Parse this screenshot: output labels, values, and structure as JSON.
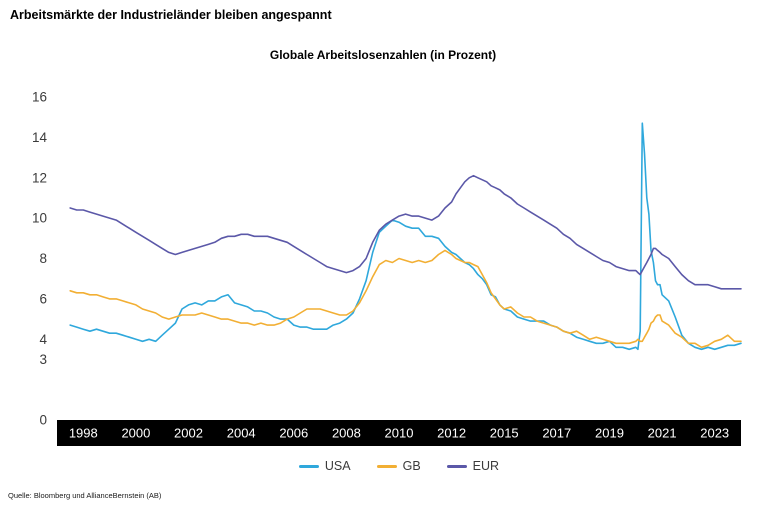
{
  "headline": "Arbeitsmärkte der Industrieländer bleiben angespannt",
  "source": "Quelle: Bloomberg und AllianceBernstein (AB)",
  "chart_data": {
    "type": "line",
    "title": "Globale Arbeitslosenzahlen (in Prozent)",
    "ylabel": "",
    "xlabel": "",
    "ylim": [
      0,
      16
    ],
    "grid": false,
    "legend_position": "bottom",
    "y_ticks": [
      16,
      14,
      12,
      10,
      8,
      6,
      4,
      3,
      0
    ],
    "x_tick_labels": [
      "1998",
      "2000",
      "2002",
      "2004",
      "2006",
      "2008",
      "2010",
      "2012",
      "2015",
      "2017",
      "2019",
      "2021",
      "2023"
    ],
    "x_tick_years": [
      1998,
      2000,
      2002,
      2004,
      2006,
      2008,
      2010,
      2012,
      2015,
      2017,
      2019,
      2021,
      2023
    ],
    "x": [
      1997.5,
      1997.75,
      1998,
      1998.25,
      1998.5,
      1998.75,
      1999,
      1999.25,
      1999.5,
      1999.75,
      2000,
      2000.25,
      2000.5,
      2000.75,
      2001,
      2001.25,
      2001.5,
      2001.75,
      2002,
      2002.25,
      2002.5,
      2002.75,
      2003,
      2003.25,
      2003.5,
      2003.75,
      2004,
      2004.25,
      2004.5,
      2004.75,
      2005,
      2005.25,
      2005.5,
      2005.75,
      2006,
      2006.25,
      2006.5,
      2006.75,
      2007,
      2007.25,
      2007.5,
      2007.75,
      2008,
      2008.25,
      2008.5,
      2008.75,
      2009,
      2009.25,
      2009.5,
      2009.75,
      2010,
      2010.25,
      2010.5,
      2010.75,
      2011,
      2011.25,
      2011.5,
      2011.75,
      2012,
      2012.25,
      2012.5,
      2012.75,
      2013,
      2013.25,
      2013.5,
      2013.75,
      2014,
      2014.25,
      2014.5,
      2014.75,
      2015,
      2015.25,
      2015.5,
      2015.75,
      2016,
      2016.25,
      2016.5,
      2016.75,
      2017,
      2017.25,
      2017.5,
      2017.75,
      2018,
      2018.25,
      2018.5,
      2018.75,
      2019,
      2019.25,
      2019.5,
      2019.75,
      2020,
      2020.08,
      2020.17,
      2020.25,
      2020.33,
      2020.42,
      2020.5,
      2020.58,
      2020.67,
      2020.75,
      2020.83,
      2020.92,
      2021,
      2021.25,
      2021.5,
      2021.75,
      2022,
      2022.25,
      2022.5,
      2022.75,
      2023,
      2023.25,
      2023.5,
      2023.75,
      2024
    ],
    "series": [
      {
        "name": "USA",
        "color": "#2FA8DC",
        "values": [
          4.7,
          4.6,
          4.5,
          4.4,
          4.5,
          4.4,
          4.3,
          4.3,
          4.2,
          4.1,
          4.0,
          3.9,
          4.0,
          3.9,
          4.2,
          4.5,
          4.8,
          5.5,
          5.7,
          5.8,
          5.7,
          5.9,
          5.9,
          6.1,
          6.2,
          5.8,
          5.7,
          5.6,
          5.4,
          5.4,
          5.3,
          5.1,
          5.0,
          5.0,
          4.7,
          4.6,
          4.6,
          4.5,
          4.5,
          4.5,
          4.7,
          4.8,
          5.0,
          5.3,
          6.0,
          6.9,
          8.3,
          9.3,
          9.6,
          9.9,
          9.8,
          9.6,
          9.5,
          9.5,
          9.1,
          9.1,
          9.0,
          8.6,
          8.3,
          8.2,
          8.0,
          7.8,
          7.7,
          7.5,
          7.2,
          7.0,
          6.7,
          6.2,
          6.1,
          5.7,
          5.5,
          5.4,
          5.1,
          5.0,
          4.9,
          4.9,
          4.9,
          4.7,
          4.6,
          4.4,
          4.3,
          4.1,
          4.0,
          3.9,
          3.8,
          3.8,
          3.9,
          3.6,
          3.6,
          3.5,
          3.6,
          3.5,
          4.4,
          14.7,
          13.2,
          11.0,
          10.2,
          8.4,
          7.8,
          6.9,
          6.7,
          6.7,
          6.2,
          5.9,
          5.1,
          4.2,
          3.8,
          3.6,
          3.5,
          3.6,
          3.5,
          3.6,
          3.7,
          3.7,
          3.8
        ]
      },
      {
        "name": "GB",
        "color": "#F2AF34",
        "values": [
          6.4,
          6.3,
          6.3,
          6.2,
          6.2,
          6.1,
          6.0,
          6.0,
          5.9,
          5.8,
          5.7,
          5.5,
          5.4,
          5.3,
          5.1,
          5.0,
          5.1,
          5.2,
          5.2,
          5.2,
          5.3,
          5.2,
          5.1,
          5.0,
          5.0,
          4.9,
          4.8,
          4.8,
          4.7,
          4.8,
          4.7,
          4.7,
          4.8,
          5.0,
          5.1,
          5.3,
          5.5,
          5.5,
          5.5,
          5.4,
          5.3,
          5.2,
          5.2,
          5.4,
          5.8,
          6.4,
          7.1,
          7.7,
          7.9,
          7.8,
          8.0,
          7.9,
          7.8,
          7.9,
          7.8,
          7.9,
          8.2,
          8.4,
          8.2,
          8.0,
          7.9,
          7.8,
          7.8,
          7.7,
          7.6,
          7.2,
          6.8,
          6.3,
          6.0,
          5.7,
          5.5,
          5.6,
          5.3,
          5.1,
          5.1,
          4.9,
          4.8,
          4.7,
          4.6,
          4.4,
          4.3,
          4.4,
          4.2,
          4.0,
          4.1,
          4.0,
          3.9,
          3.8,
          3.8,
          3.8,
          3.9,
          4.0,
          3.9,
          3.9,
          4.1,
          4.3,
          4.5,
          4.8,
          4.9,
          5.1,
          5.2,
          5.2,
          4.9,
          4.7,
          4.3,
          4.1,
          3.8,
          3.8,
          3.6,
          3.7,
          3.9,
          4.0,
          4.2,
          3.9,
          3.9
        ]
      },
      {
        "name": "EUR",
        "color": "#5B58A8",
        "values": [
          10.5,
          10.4,
          10.4,
          10.3,
          10.2,
          10.1,
          10.0,
          9.9,
          9.7,
          9.5,
          9.3,
          9.1,
          8.9,
          8.7,
          8.5,
          8.3,
          8.2,
          8.3,
          8.4,
          8.5,
          8.6,
          8.7,
          8.8,
          9.0,
          9.1,
          9.1,
          9.2,
          9.2,
          9.1,
          9.1,
          9.1,
          9.0,
          8.9,
          8.8,
          8.6,
          8.4,
          8.2,
          8.0,
          7.8,
          7.6,
          7.5,
          7.4,
          7.3,
          7.4,
          7.6,
          8.0,
          8.8,
          9.4,
          9.7,
          9.9,
          10.1,
          10.2,
          10.1,
          10.1,
          10.0,
          9.9,
          10.1,
          10.5,
          10.8,
          11.2,
          11.5,
          11.8,
          12.0,
          12.1,
          12.0,
          11.9,
          11.8,
          11.6,
          11.5,
          11.4,
          11.2,
          11.0,
          10.7,
          10.5,
          10.3,
          10.1,
          9.9,
          9.7,
          9.5,
          9.2,
          9.0,
          8.7,
          8.5,
          8.3,
          8.1,
          7.9,
          7.8,
          7.6,
          7.5,
          7.4,
          7.4,
          7.3,
          7.2,
          7.4,
          7.6,
          7.8,
          8.0,
          8.2,
          8.5,
          8.5,
          8.4,
          8.3,
          8.2,
          8.0,
          7.6,
          7.2,
          6.9,
          6.7,
          6.7,
          6.7,
          6.6,
          6.5,
          6.5,
          6.5,
          6.5
        ]
      }
    ]
  }
}
